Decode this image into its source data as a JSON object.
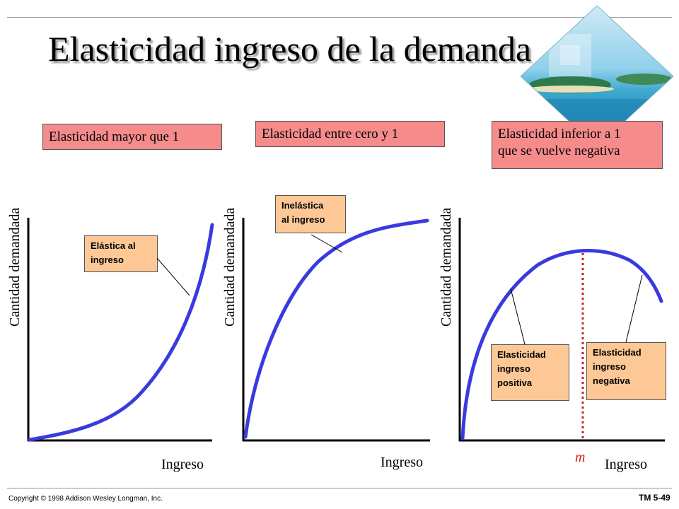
{
  "title": "Elasticidad ingreso de la demanda",
  "panels": [
    {
      "header": "Elasticidad mayor que 1",
      "y_axis_label": "Cantidad demandada",
      "x_axis_label": "Ingreso",
      "callout": [
        "Elástica al",
        "ingreso"
      ]
    },
    {
      "header": "Elasticidad entre cero y 1",
      "y_axis_label": "Cantidad demandada",
      "x_axis_label": "Ingreso",
      "callout": [
        "Inelástica",
        "al ingreso"
      ]
    },
    {
      "header": [
        "Elasticidad inferior a 1",
        "que se vuelve negativa"
      ],
      "y_axis_label": "Cantidad demandada",
      "x_axis_label": "Ingreso",
      "callout_positive": [
        "Elasticidad",
        "ingreso",
        "positiva"
      ],
      "callout_negative": [
        "Elasticidad",
        "ingreso",
        "negativa"
      ],
      "marker_label": "m"
    }
  ],
  "footer": {
    "copyright": "Copyright © 1998 Addison Wesley Longman, Inc.",
    "slide_id": "TM 5-49"
  },
  "colors": {
    "curve": "#3a3ae0",
    "header_box": "#f58b8b",
    "callout_box": "#fdc896",
    "marker": "#d02020"
  },
  "decoration": "tropical-island-photo"
}
